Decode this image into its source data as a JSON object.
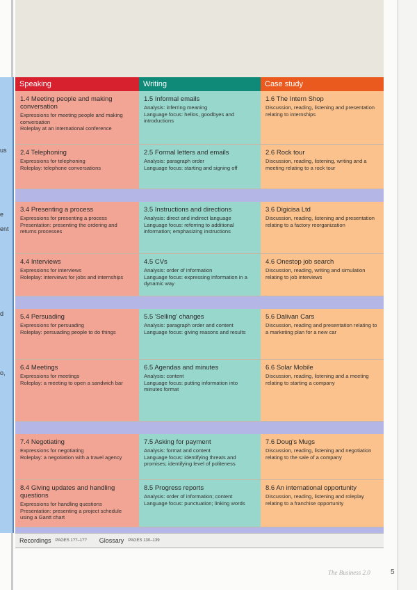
{
  "columns": [
    "Speaking",
    "Writing",
    "Case study"
  ],
  "left_fragments": [
    "us",
    "e",
    "ent",
    "d",
    "o,"
  ],
  "colors": {
    "speaking_header": "#d8212f",
    "writing_header": "#0f8a78",
    "case_header": "#ea5a1f",
    "speaking_cell": "#f2a595",
    "writing_cell": "#98d7cc",
    "case_cell": "#fbc28d",
    "band": "#b4b6e6"
  },
  "rows": [
    {
      "cells": [
        {
          "title": "1.4 Meeting people and making conversation",
          "lines": [
            "Expressions for meeting people and making conversation",
            "Roleplay at an international conference"
          ]
        },
        {
          "title": "1.5 Informal emails",
          "lines": [
            "Analysis: inferring meaning",
            "Language focus: hellos, goodbyes and introductions"
          ]
        },
        {
          "title": "1.6 The Intern Shop",
          "lines": [
            "Discussion, reading, listening and presentation relating to internships"
          ]
        }
      ]
    },
    {
      "cells": [
        {
          "title": "2.4 Telephoning",
          "lines": [
            "Expressions for telephoning",
            "Roleplay: telephone conversations"
          ]
        },
        {
          "title": "2.5 Formal letters and emails",
          "lines": [
            "Analysis: paragraph order",
            "Language focus: starting and signing off"
          ]
        },
        {
          "title": "2.6 Rock tour",
          "lines": [
            "Discussion, reading, listening, writing and a meeting relating to a rock tour"
          ]
        }
      ]
    },
    {
      "cells": [
        {
          "title": "3.4 Presenting a process",
          "lines": [
            "Expressions for presenting a process",
            "Presentation: presenting the ordering and returns processes"
          ]
        },
        {
          "title": "3.5 Instructions and directions",
          "lines": [
            "Analysis: direct and indirect language",
            "Language focus: referring to additional information; emphasizing instructions"
          ]
        },
        {
          "title": "3.6 Digicisa Ltd",
          "lines": [
            "Discussion, reading, listening and presentation relating to a factory reorganization"
          ]
        }
      ]
    },
    {
      "cells": [
        {
          "title": "4.4 Interviews",
          "lines": [
            "Expressions for interviews",
            "Roleplay: interviews for jobs and internships"
          ]
        },
        {
          "title": "4.5 CVs",
          "lines": [
            "Analysis: order of information",
            "Language focus: expressing information in a dynamic way"
          ]
        },
        {
          "title": "4.6 Onestop job search",
          "lines": [
            "Discussion, reading, writing and simulation relating to job interviews"
          ]
        }
      ]
    },
    {
      "cells": [
        {
          "title": "5.4 Persuading",
          "lines": [
            "Expressions for persuading",
            "Roleplay: persuading people to do things"
          ]
        },
        {
          "title": "5.5 'Selling' changes",
          "lines": [
            "Analysis: paragraph order and content",
            "Language focus: giving reasons and results"
          ]
        },
        {
          "title": "5.6 Dalivan Cars",
          "lines": [
            "Discussion, reading and presentation relating to a marketing plan for a new car"
          ]
        }
      ]
    },
    {
      "cells": [
        {
          "title": "6.4 Meetings",
          "lines": [
            "Expressions for meetings",
            "Roleplay: a meeting to open a sandwich bar"
          ]
        },
        {
          "title": "6.5 Agendas and minutes",
          "lines": [
            "Analysis: content",
            "Language focus: putting information into minutes format"
          ]
        },
        {
          "title": "6.6 Solar Mobile",
          "lines": [
            "Discussion, reading, listening and a meeting relating to starting a company"
          ]
        }
      ]
    },
    {
      "cells": [
        {
          "title": "7.4 Negotiating",
          "lines": [
            "Expressions for negotiating",
            "Roleplay: a negotiation with a travel agency"
          ]
        },
        {
          "title": "7.5 Asking for payment",
          "lines": [
            "Analysis: format and content",
            "Language focus: identifying threats and promises; identifying level of politeness"
          ]
        },
        {
          "title": "7.6 Doug's Mugs",
          "lines": [
            "Discussion, reading, listening and negotiation relating to the sale of a company"
          ]
        }
      ]
    },
    {
      "cells": [
        {
          "title": "8.4 Giving updates and handling questions",
          "lines": [
            "Expressions for handling questions",
            "Presentation: presenting a project schedule using a Gantt chart"
          ]
        },
        {
          "title": "8.5 Progress reports",
          "lines": [
            "Analysis: order of information; content",
            "Language focus: punctuation; linking words"
          ]
        },
        {
          "title": "8.6 An international opportunity",
          "lines": [
            "Discussion, reading, listening and roleplay relating to a franchise opportunity"
          ]
        }
      ]
    }
  ],
  "footer": {
    "recordings_label": "Recordings",
    "recordings_pages": "PAGES 1??–1??",
    "glossary_label": "Glossary",
    "glossary_pages": "PAGES 130–139"
  },
  "brand": "The Business 2.0",
  "page_number": "5"
}
